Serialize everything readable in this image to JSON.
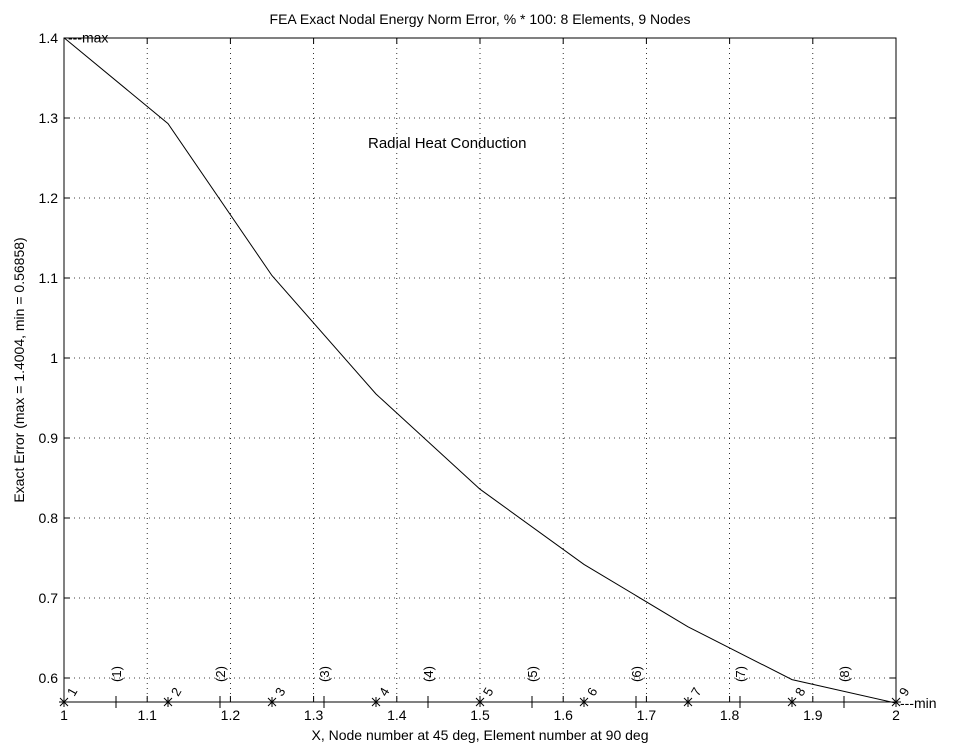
{
  "chart_data": {
    "type": "line",
    "title": "FEA Exact Nodal Energy Norm Error, % * 100:   8 Elements, 9 Nodes",
    "xlabel": "X, Node number at 45 deg, Element number at 90 deg",
    "ylabel": "Exact Error (max = 1.4004, min = 0.56858)",
    "annotation": "Radial  Heat Conduction",
    "xlim": [
      1,
      2
    ],
    "ylim": [
      0.57,
      1.4
    ],
    "xticks": [
      "1",
      "1.1",
      "1.2",
      "1.3",
      "1.4",
      "1.5",
      "1.6",
      "1.7",
      "1.8",
      "1.9",
      "2"
    ],
    "yticks": [
      "0.6",
      "0.7",
      "0.8",
      "0.9",
      "1",
      "1.1",
      "1.2",
      "1.3",
      "1.4"
    ],
    "grid": true,
    "series": [
      {
        "x": [
          1,
          1.125,
          1.25,
          1.375,
          1.5,
          1.625,
          1.75,
          1.875,
          2
        ],
        "values": [
          1.4004,
          1.293,
          1.103,
          0.955,
          0.836,
          0.742,
          0.664,
          0.598,
          0.56858
        ]
      }
    ],
    "max_label": "---max",
    "min_label": "---min",
    "node_labels": [
      "1",
      "2",
      "3",
      "4",
      "5",
      "6",
      "7",
      "8",
      "9"
    ],
    "element_labels": [
      "(1)",
      "(2)",
      "(3)",
      "(4)",
      "(5)",
      "(6)",
      "(7)",
      "(8)"
    ]
  }
}
